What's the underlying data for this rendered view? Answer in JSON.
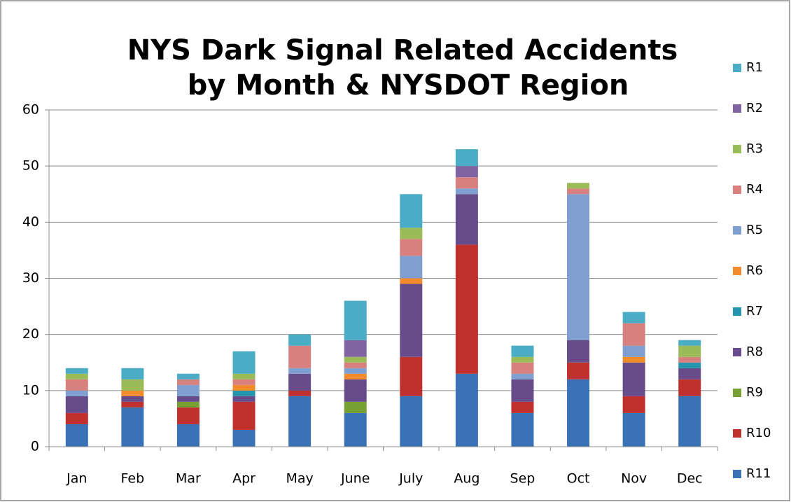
{
  "chart_data": {
    "type": "bar",
    "stacked": true,
    "title": [
      "NYS Dark Signal Related Accidents",
      "by Month & NYSDOT Region"
    ],
    "categories": [
      "Jan",
      "Feb",
      "Mar",
      "Apr",
      "May",
      "June",
      "July",
      "Aug",
      "Sep",
      "Oct",
      "Nov",
      "Dec"
    ],
    "ylim": [
      0,
      60
    ],
    "yticks": [
      0,
      10,
      20,
      30,
      40,
      50,
      60
    ],
    "grid": true,
    "legend": "right",
    "series": [
      {
        "name": "R1",
        "color": "#4bacc6",
        "values": [
          1,
          2,
          1,
          4,
          2,
          7,
          6,
          3,
          2,
          0,
          2,
          1
        ]
      },
      {
        "name": "R2",
        "color": "#8064a2",
        "values": [
          0,
          0,
          0,
          0,
          0,
          3,
          0,
          2,
          0,
          0,
          0,
          0
        ]
      },
      {
        "name": "R3",
        "color": "#9bbb59",
        "values": [
          1,
          2,
          0,
          1,
          0,
          1,
          2,
          0,
          1,
          1,
          0,
          2
        ]
      },
      {
        "name": "R4",
        "color": "#d8807e",
        "values": [
          2,
          0,
          1,
          1,
          4,
          1,
          3,
          2,
          2,
          1,
          4,
          1
        ]
      },
      {
        "name": "R5",
        "color": "#7f9fd1",
        "values": [
          1,
          0,
          2,
          0,
          1,
          1,
          4,
          1,
          1,
          26,
          2,
          0
        ]
      },
      {
        "name": "R6",
        "color": "#f28b2c",
        "values": [
          0,
          1,
          0,
          1,
          0,
          1,
          1,
          0,
          0,
          0,
          1,
          0
        ]
      },
      {
        "name": "R7",
        "color": "#2596ad",
        "values": [
          0,
          0,
          0,
          1,
          0,
          0,
          0,
          0,
          0,
          0,
          0,
          1
        ]
      },
      {
        "name": "R8",
        "color": "#664c8a",
        "values": [
          3,
          1,
          1,
          1,
          3,
          4,
          13,
          9,
          4,
          4,
          6,
          2
        ]
      },
      {
        "name": "R9",
        "color": "#77a032",
        "values": [
          0,
          0,
          1,
          0,
          0,
          2,
          0,
          0,
          0,
          0,
          0,
          0
        ]
      },
      {
        "name": "R10",
        "color": "#c0302d",
        "values": [
          2,
          1,
          3,
          5,
          1,
          0,
          7,
          23,
          2,
          3,
          3,
          3
        ]
      },
      {
        "name": "R11",
        "color": "#3a72b8",
        "values": [
          4,
          7,
          4,
          3,
          9,
          6,
          9,
          13,
          6,
          12,
          6,
          9
        ]
      }
    ]
  }
}
